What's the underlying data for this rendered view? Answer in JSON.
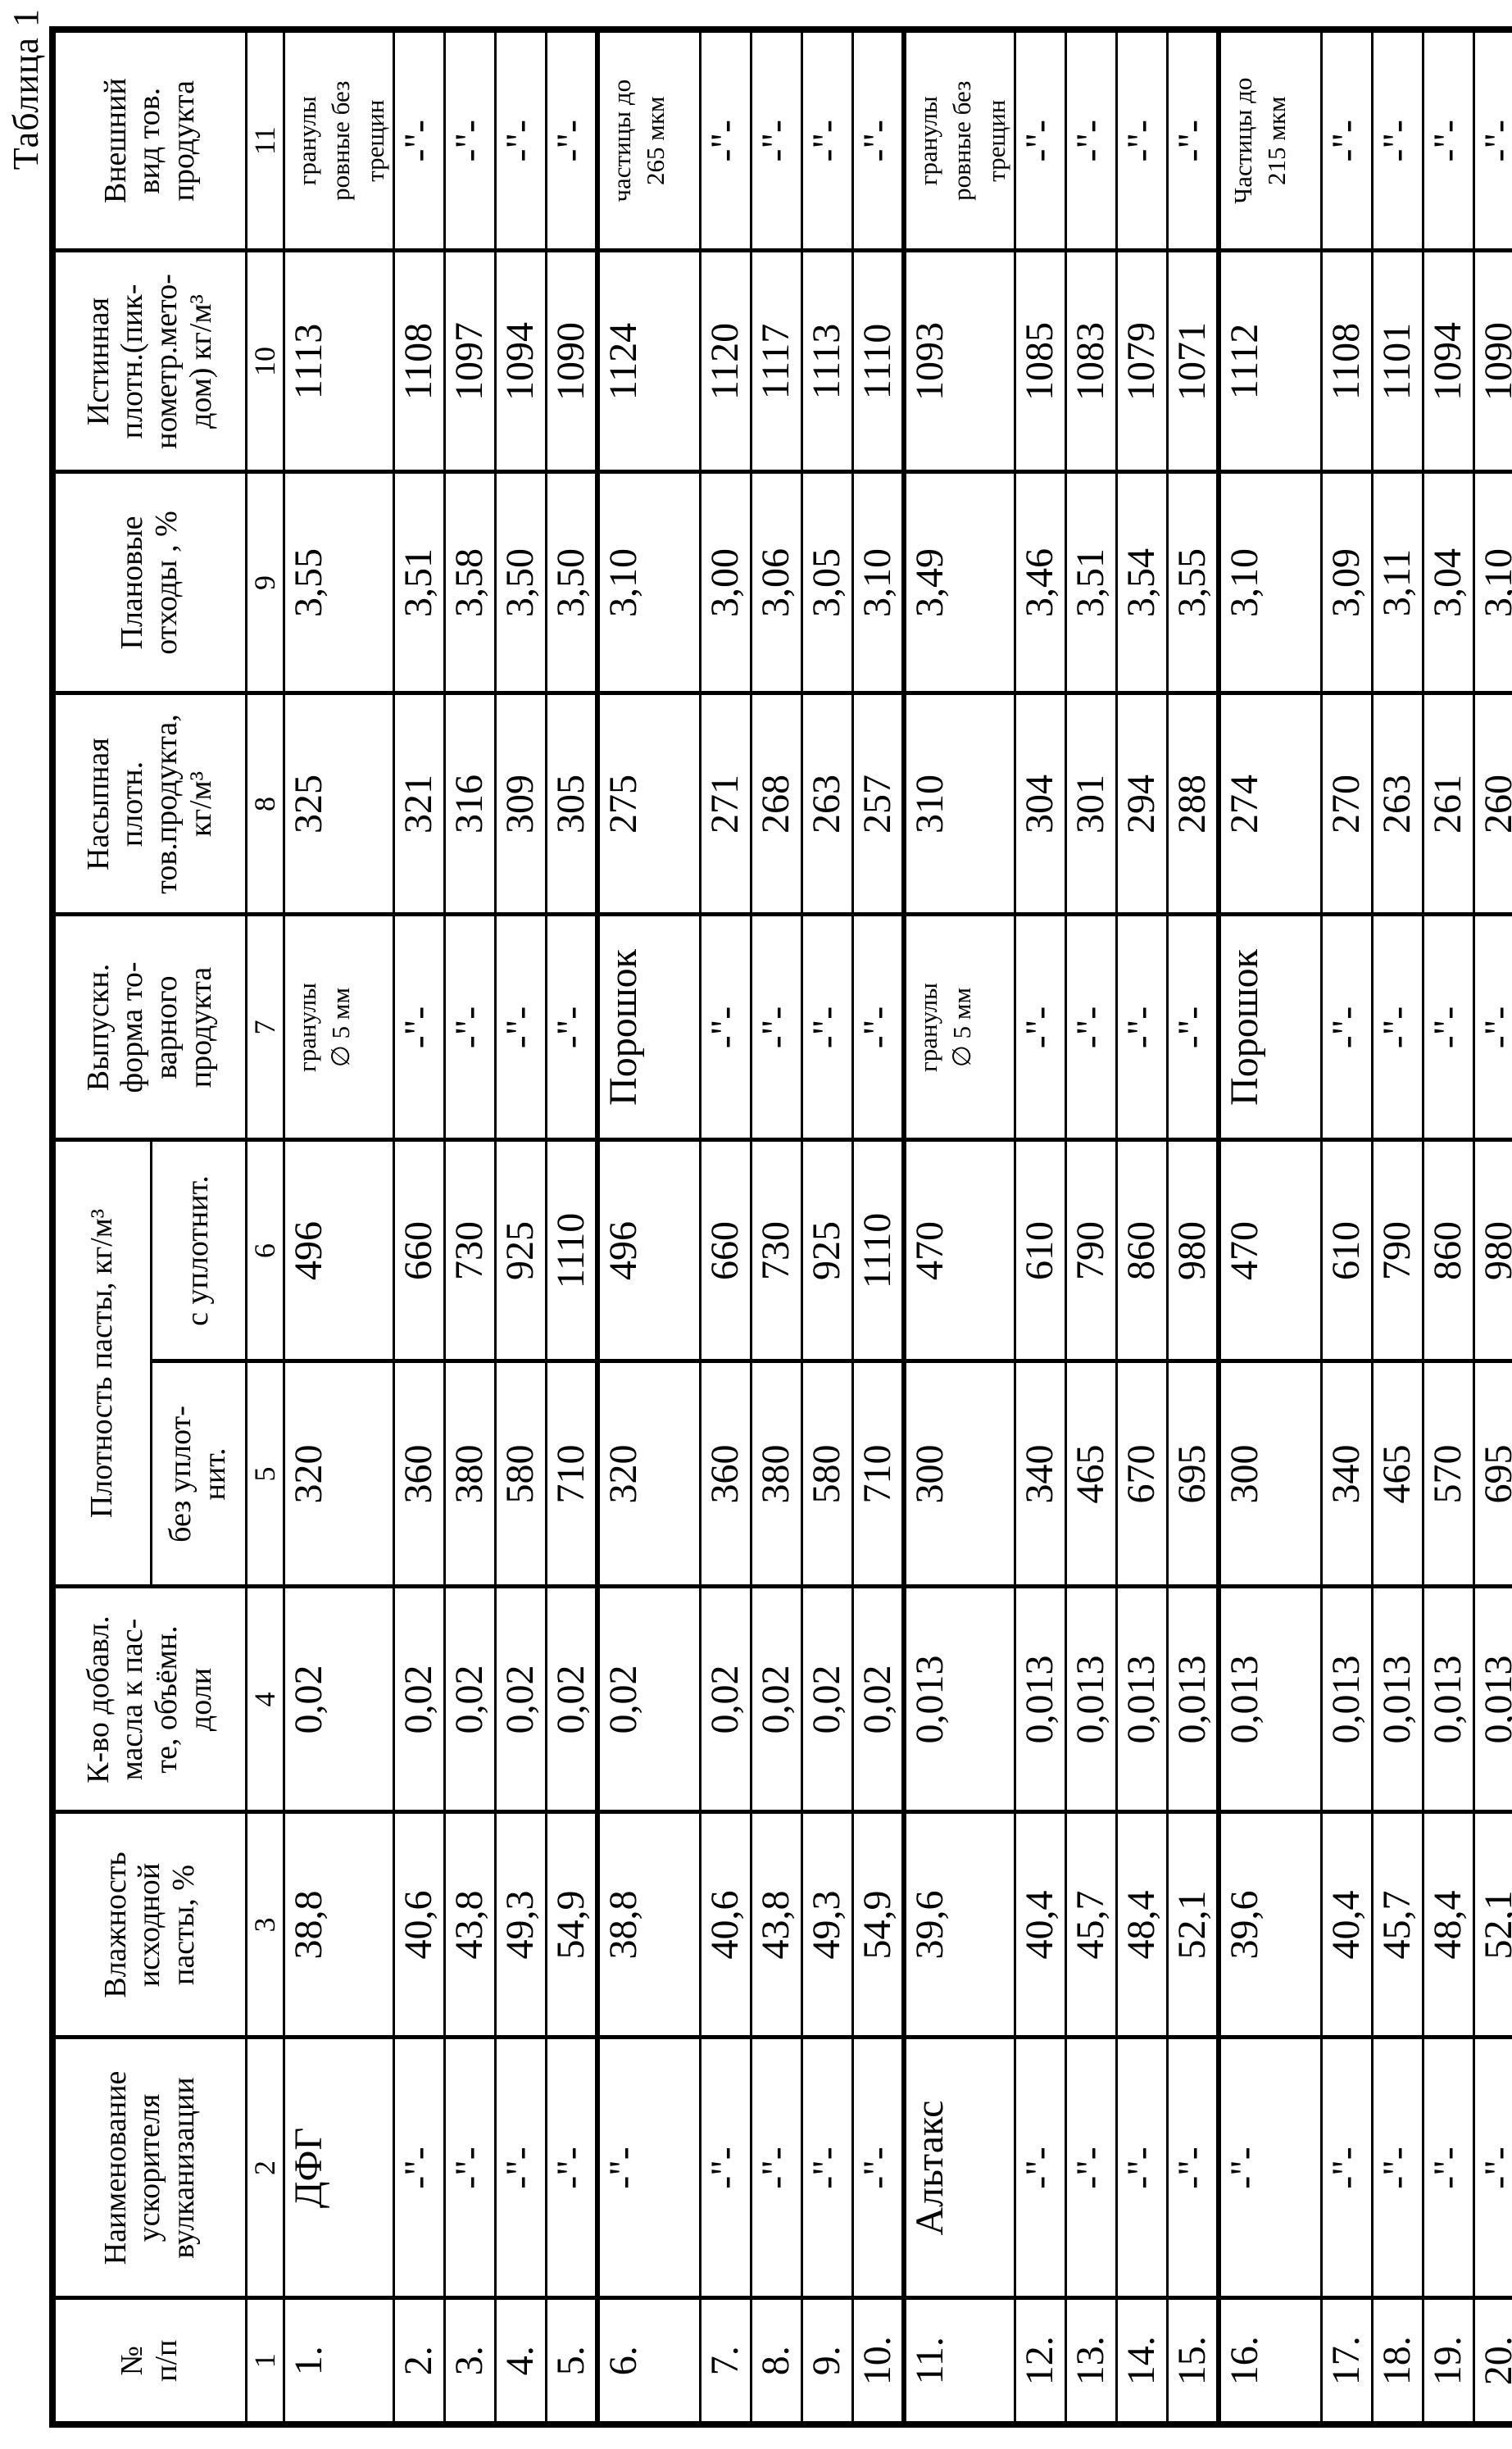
{
  "title": "Таблица 1",
  "colors": {
    "ink": "#000000",
    "paper": "#ffffff"
  },
  "table": {
    "headers": {
      "col1": "№\nп/п",
      "col2": "Наименование\nускорителя\nвулканизации",
      "col3": "Влажность\nисходной\nпасты, %",
      "col4": "К-во добавл.\nмасла к пас-\nте, объёмн.\nдоли",
      "col56_group": "Плотность пасты, кг/м³",
      "col5": "без уплот-\nнит.",
      "col6": "с уплотнит.",
      "col7": "Выпускн.\nформа то-\nварного\nпродукта",
      "col8": "Насыпная\nплотн.\nтов.продукта,\nкг/м³",
      "col9": "Плановые\nотходы , %",
      "col10": "Истинная\nплотн.(пик-\nнометр.мето-\nдом) кг/м³",
      "col11": "Внешний\nвид тов.\nпродукта"
    },
    "column_numbers": [
      "1",
      "2",
      "3",
      "4",
      "5",
      "6",
      "7",
      "8",
      "9",
      "10",
      "11"
    ],
    "rows": [
      [
        "1.",
        "ДФГ",
        "38,8",
        "0,02",
        "320",
        "496",
        "гранулы\n∅ 5 мм",
        "325",
        "3,55",
        "1113",
        "гранулы\nровные без\nтрещин"
      ],
      [
        "2.",
        "-\"-",
        "40,6",
        "0,02",
        "360",
        "660",
        "-\"-",
        "321",
        "3,51",
        "1108",
        "-\"-"
      ],
      [
        "3.",
        "-\"-",
        "43,8",
        "0,02",
        "380",
        "730",
        "-\"-",
        "316",
        "3,58",
        "1097",
        "-\"-"
      ],
      [
        "4.",
        "-\"-",
        "49,3",
        "0,02",
        "580",
        "925",
        "-\"-",
        "309",
        "3,50",
        "1094",
        "-\"-"
      ],
      [
        "5.",
        "-\"-",
        "54,9",
        "0,02",
        "710",
        "1110",
        "-\"-",
        "305",
        "3,50",
        "1090",
        "-\"-"
      ],
      [
        "6.",
        "-\"-",
        "38,8",
        "0,02",
        "320",
        "496",
        "Порошок",
        "275",
        "3,10",
        "1124",
        "частицы до\n265 мкм"
      ],
      [
        "7.",
        "-\"-",
        "40,6",
        "0,02",
        "360",
        "660",
        "-\"-",
        "271",
        "3,00",
        "1120",
        "-\"-"
      ],
      [
        "8.",
        "-\"-",
        "43,8",
        "0,02",
        "380",
        "730",
        "-\"-",
        "268",
        "3,06",
        "1117",
        "-\"-"
      ],
      [
        "9.",
        "-\"-",
        "49,3",
        "0,02",
        "580",
        "925",
        "-\"-",
        "263",
        "3,05",
        "1113",
        "-\"-"
      ],
      [
        "10.",
        "-\"-",
        "54,9",
        "0,02",
        "710",
        "1110",
        "-\"-",
        "257",
        "3,10",
        "1110",
        "-\"-"
      ],
      [
        "11.",
        "Альтакс",
        "39,6",
        "0,013",
        "300",
        "470",
        "гранулы\n∅ 5 мм",
        "310",
        "3,49",
        "1093",
        "гранулы\nровные без\nтрещин"
      ],
      [
        "12.",
        "-\"-",
        "40,4",
        "0,013",
        "340",
        "610",
        "-\"-",
        "304",
        "3,46",
        "1085",
        "-\"-"
      ],
      [
        "13.",
        "-\"-",
        "45,7",
        "0,013",
        "465",
        "790",
        "-\"-",
        "301",
        "3,51",
        "1083",
        "-\"-"
      ],
      [
        "14.",
        "-\"-",
        "48,4",
        "0,013",
        "670",
        "860",
        "-\"-",
        "294",
        "3,54",
        "1079",
        "-\"-"
      ],
      [
        "15.",
        "-\"-",
        "52,1",
        "0,013",
        "695",
        "980",
        "-\"-",
        "288",
        "3,55",
        "1071",
        "-\"-"
      ],
      [
        "16.",
        "-\"-",
        "39,6",
        "0,013",
        "300",
        "470",
        "Порошок",
        "274",
        "3,10",
        "1112",
        "Частицы до\n215 мкм"
      ],
      [
        "17.",
        "-\"-",
        "40,4",
        "0,013",
        "340",
        "610",
        "-\"-",
        "270",
        "3,09",
        "1108",
        "-\"-"
      ],
      [
        "18.",
        "-\"-",
        "45,7",
        "0,013",
        "465",
        "790",
        "-\"-",
        "263",
        "3,11",
        "1101",
        "-\"-"
      ],
      [
        "19.",
        "-\"-",
        "48,4",
        "0,013",
        "570",
        "860",
        "-\"-",
        "261",
        "3,04",
        "1094",
        "-\"-"
      ],
      [
        "20.",
        "-\"-",
        "52,1",
        "0,013",
        "695",
        "980",
        "-\"-",
        "260",
        "3,10",
        "1090",
        "-\"-"
      ]
    ]
  }
}
